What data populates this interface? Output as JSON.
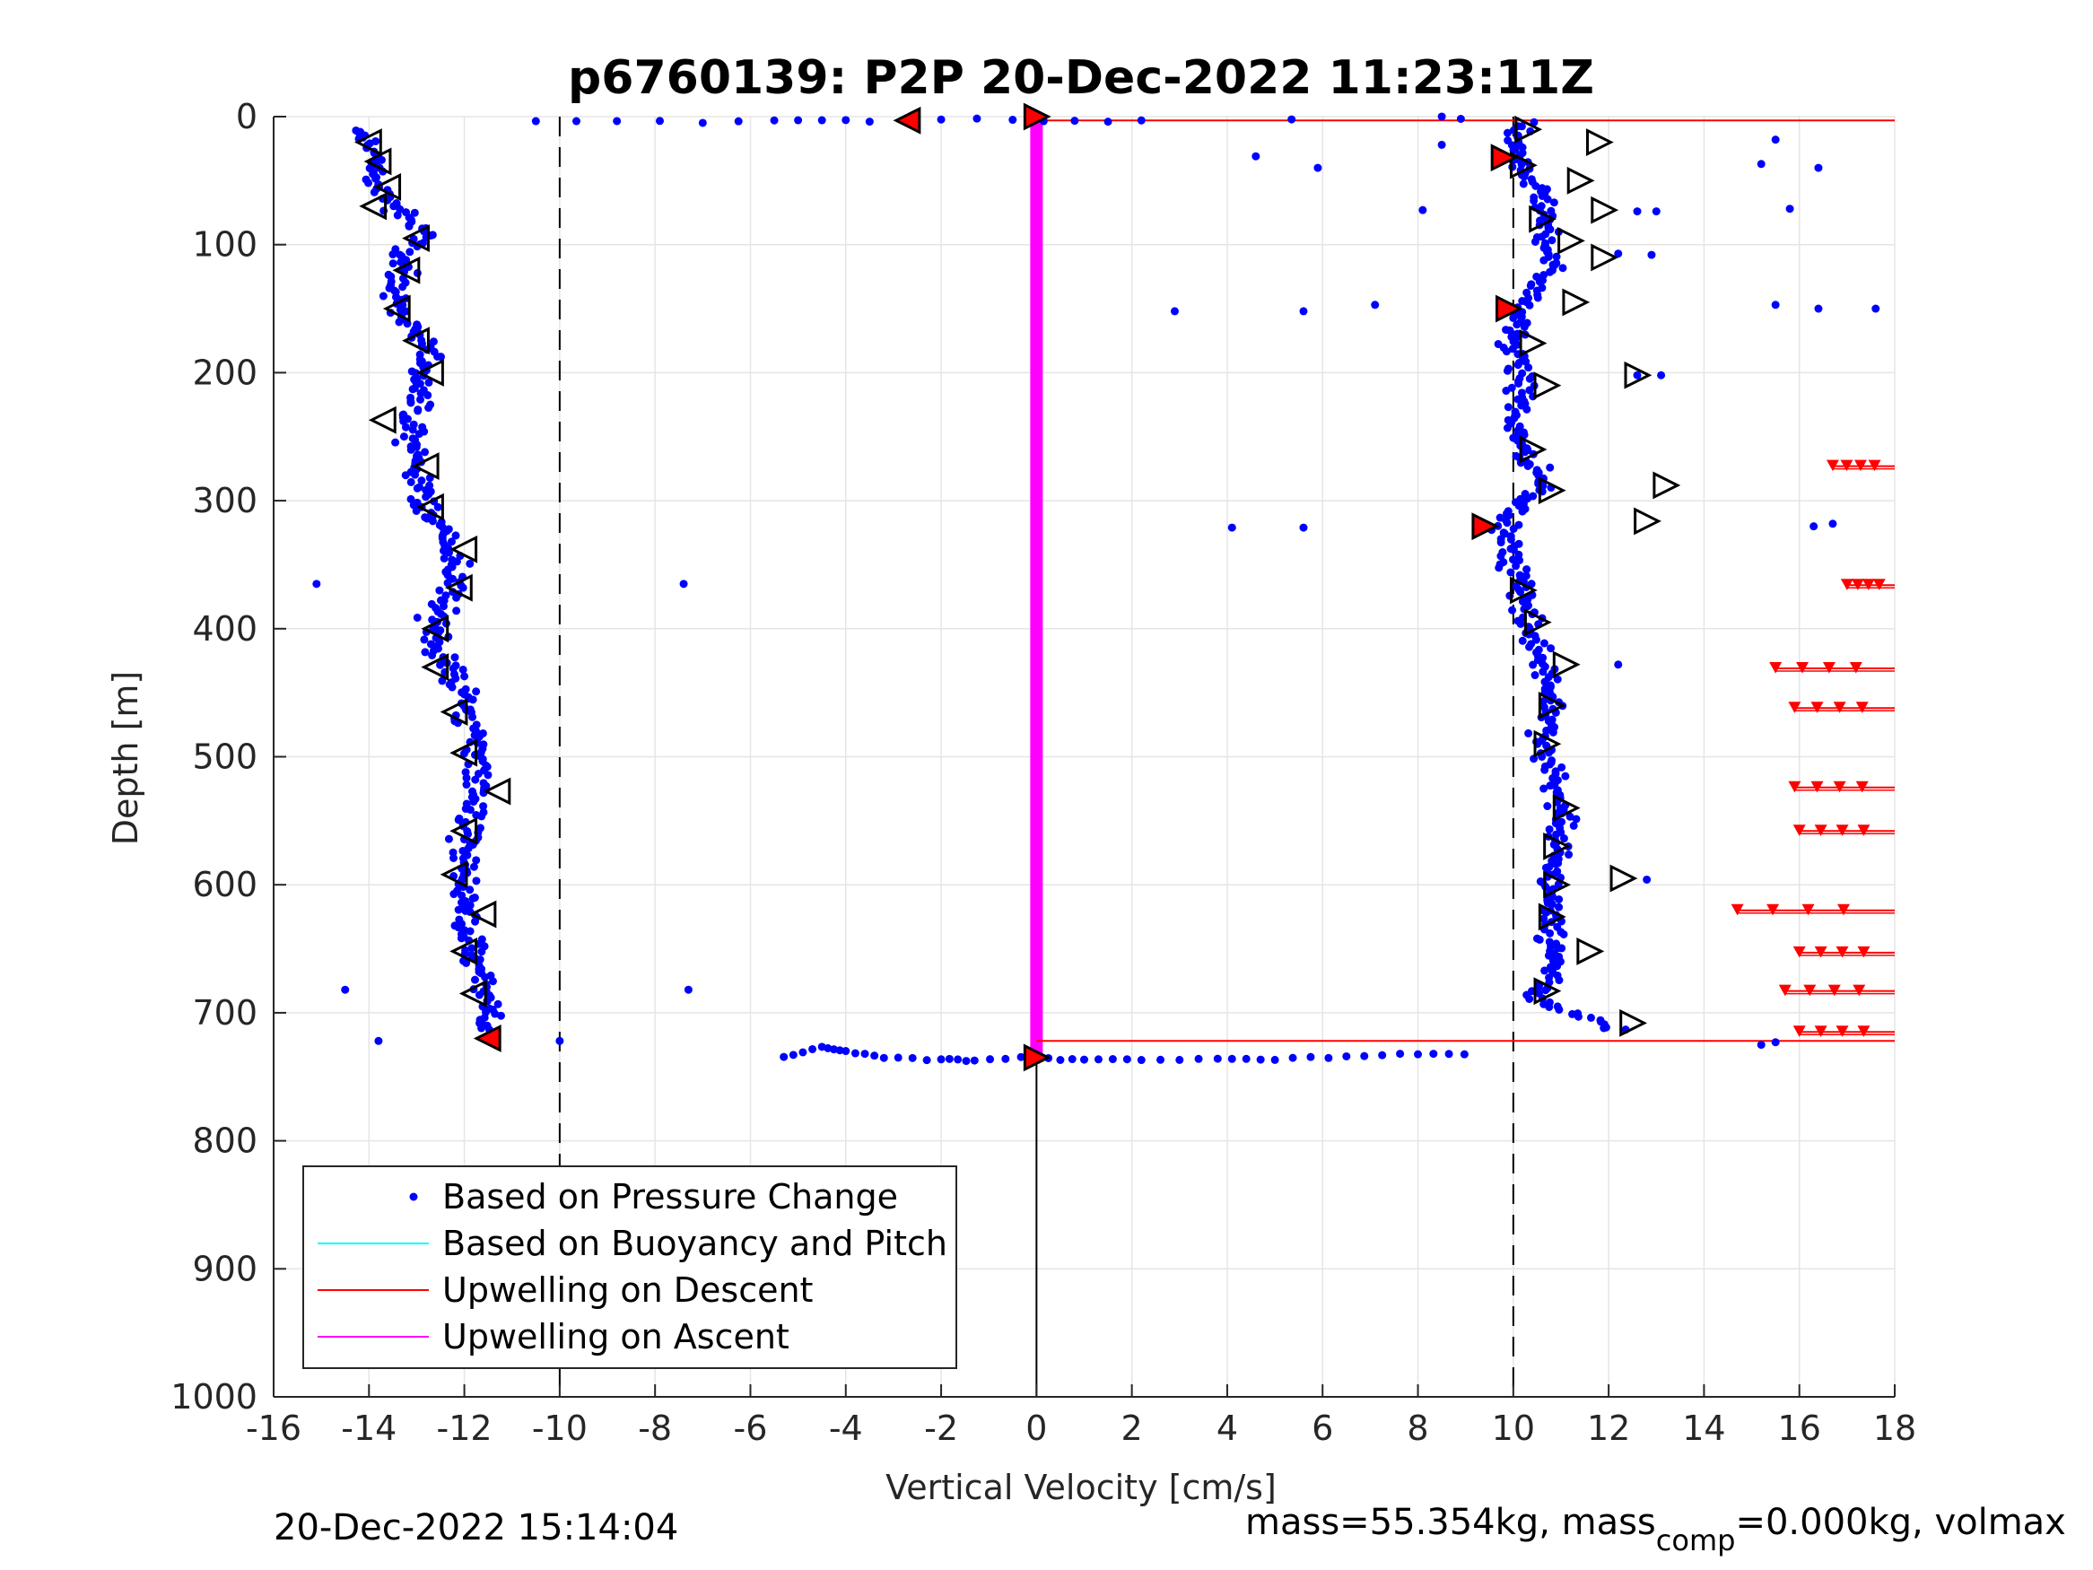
{
  "chart_data": {
    "type": "scatter",
    "title": "p6760139: P2P 20-Dec-2022 11:23:11Z",
    "xlabel": "Vertical Velocity [cm/s]",
    "ylabel": "Depth [m]",
    "xlim": [
      -16,
      18
    ],
    "ylim": [
      0,
      1000
    ],
    "y_reversed": true,
    "grid": true,
    "x_ticks": [
      "-16",
      "-14",
      "-12",
      "-10",
      "-8",
      "-6",
      "-4",
      "-2",
      "0",
      "2",
      "4",
      "6",
      "8",
      "10",
      "12",
      "14",
      "16",
      "18"
    ],
    "y_ticks": [
      "0",
      "100",
      "200",
      "300",
      "400",
      "500",
      "600",
      "700",
      "800",
      "900",
      "1000"
    ],
    "reference_lines_x": [
      -10,
      10
    ],
    "legend": {
      "placement": "bottom-left",
      "entries": [
        "Based on Pressure Change",
        "Based on Buoyancy and Pitch",
        "Upwelling on Descent",
        "Upwelling on Ascent"
      ]
    },
    "colors": {
      "pressure": "#0000ff",
      "buoyancy": "#00ffff",
      "descent_upwelling": "#ff0000",
      "ascent_upwelling": "#ff00ff",
      "grid": "#e5e5e5"
    },
    "series": [
      {
        "name": "Based on Pressure Change",
        "descent_profile": [
          [
            -14.3,
            10
          ],
          [
            -13.8,
            30
          ],
          [
            -13.9,
            50
          ],
          [
            -13.5,
            70
          ],
          [
            -12.9,
            90
          ],
          [
            -13.2,
            110
          ],
          [
            -13.5,
            130
          ],
          [
            -13.3,
            150
          ],
          [
            -13.0,
            170
          ],
          [
            -12.8,
            190
          ],
          [
            -12.9,
            210
          ],
          [
            -13.2,
            240
          ],
          [
            -13.0,
            270
          ],
          [
            -12.9,
            300
          ],
          [
            -12.3,
            330
          ],
          [
            -12.2,
            360
          ],
          [
            -12.6,
            390
          ],
          [
            -12.5,
            420
          ],
          [
            -12.0,
            450
          ],
          [
            -11.9,
            480
          ],
          [
            -11.6,
            510
          ],
          [
            -11.8,
            540
          ],
          [
            -12.0,
            570
          ],
          [
            -12.0,
            600
          ],
          [
            -12.0,
            630
          ],
          [
            -11.8,
            660
          ],
          [
            -11.5,
            690
          ],
          [
            -11.6,
            715
          ]
        ],
        "ascent_profile": [
          [
            10.1,
            5
          ],
          [
            10.0,
            30
          ],
          [
            10.6,
            60
          ],
          [
            10.7,
            90
          ],
          [
            10.8,
            120
          ],
          [
            10.2,
            150
          ],
          [
            10.0,
            180
          ],
          [
            10.2,
            210
          ],
          [
            10.0,
            240
          ],
          [
            10.4,
            270
          ],
          [
            10.6,
            290
          ],
          [
            9.8,
            320
          ],
          [
            9.9,
            345
          ],
          [
            10.2,
            370
          ],
          [
            10.3,
            400
          ],
          [
            10.7,
            430
          ],
          [
            10.8,
            460
          ],
          [
            10.6,
            490
          ],
          [
            10.9,
            520
          ],
          [
            11.0,
            545
          ],
          [
            10.9,
            570
          ],
          [
            10.8,
            600
          ],
          [
            10.8,
            630
          ],
          [
            10.9,
            660
          ],
          [
            10.5,
            690
          ],
          [
            12.4,
            715
          ]
        ],
        "surface_points": [
          [
            -10.5,
            3
          ],
          [
            -8.8,
            4
          ],
          [
            -7.0,
            4
          ],
          [
            -5.5,
            3
          ],
          [
            -4.5,
            3
          ],
          [
            -3.5,
            3
          ],
          [
            -2.0,
            2
          ],
          [
            -0.5,
            2
          ],
          [
            0.8,
            4
          ],
          [
            2.2,
            3
          ],
          [
            8.5,
            1
          ],
          [
            9.3,
            1
          ]
        ],
        "bottom_points": [
          [
            -5.3,
            735
          ],
          [
            -4.5,
            727
          ],
          [
            -4.0,
            730
          ],
          [
            -3.2,
            735
          ],
          [
            -2.0,
            737
          ],
          [
            -1.3,
            737
          ],
          [
            0.0,
            735
          ],
          [
            1.0,
            737
          ],
          [
            2.2,
            737
          ],
          [
            3.8,
            736
          ],
          [
            5.0,
            736
          ],
          [
            6.5,
            734
          ],
          [
            8.0,
            732
          ],
          [
            9.3,
            732
          ]
        ],
        "outliers": [
          [
            -15.1,
            365
          ],
          [
            -7.4,
            365
          ],
          [
            -14.5,
            682
          ],
          [
            -7.3,
            682
          ],
          [
            -13.8,
            722
          ],
          [
            -10.0,
            722
          ],
          [
            2.9,
            152
          ],
          [
            5.6,
            152
          ],
          [
            7.1,
            147
          ],
          [
            4.1,
            321
          ],
          [
            5.6,
            321
          ],
          [
            4.6,
            31
          ],
          [
            5.9,
            40
          ],
          [
            8.1,
            73
          ],
          [
            8.5,
            22
          ],
          [
            15.5,
            18
          ],
          [
            15.2,
            37
          ],
          [
            15.8,
            72
          ],
          [
            16.4,
            40
          ],
          [
            15.5,
            147
          ],
          [
            16.4,
            150
          ],
          [
            17.6,
            150
          ],
          [
            16.3,
            320
          ],
          [
            16.7,
            318
          ],
          [
            15.2,
            725
          ],
          [
            15.5,
            723
          ],
          [
            13.1,
            202
          ],
          [
            12.2,
            428
          ],
          [
            12.8,
            596
          ],
          [
            12.2,
            107
          ],
          [
            12.9,
            108
          ],
          [
            13.0,
            74
          ],
          [
            12.6,
            74
          ],
          [
            12.6,
            202
          ]
        ]
      },
      {
        "name": "Based on Buoyancy and Pitch",
        "points": []
      },
      {
        "name": "Upwelling on Descent",
        "baseline_x": 0,
        "descent_top_depth": 3,
        "descent_bottom_depth": 722,
        "bars": [
          {
            "depth": 273,
            "from": 16.7
          },
          {
            "depth": 366,
            "from": 17.0
          },
          {
            "depth": 431,
            "from": 15.5
          },
          {
            "depth": 462,
            "from": 15.9
          },
          {
            "depth": 524,
            "from": 15.9
          },
          {
            "depth": 558,
            "from": 16.0
          },
          {
            "depth": 620,
            "from": 14.7
          },
          {
            "depth": 653,
            "from": 16.0
          },
          {
            "depth": 683,
            "from": 15.7
          },
          {
            "depth": 715,
            "from": 16.0
          }
        ]
      },
      {
        "name": "Upwelling on Ascent",
        "x": 0,
        "depth_range": [
          0,
          735
        ]
      }
    ],
    "markers": {
      "ascent_open_triangles": [
        [
          -14.0,
          20
        ],
        [
          -13.8,
          35
        ],
        [
          -13.6,
          55
        ],
        [
          -13.9,
          70
        ],
        [
          -13.0,
          95
        ],
        [
          -13.2,
          120
        ],
        [
          -13.4,
          150
        ],
        [
          -13.0,
          175
        ],
        [
          -12.7,
          200
        ],
        [
          -13.7,
          237
        ],
        [
          -12.8,
          273
        ],
        [
          -12.7,
          305
        ],
        [
          -12.0,
          338
        ],
        [
          -12.1,
          368
        ],
        [
          -12.6,
          400
        ],
        [
          -12.6,
          430
        ],
        [
          -12.2,
          465
        ],
        [
          -12.0,
          497
        ],
        [
          -11.3,
          527
        ],
        [
          -12.0,
          558
        ],
        [
          -12.2,
          592
        ],
        [
          -11.6,
          623
        ],
        [
          -12.0,
          652
        ],
        [
          -11.8,
          685
        ]
      ],
      "descent_open_triangles": [
        [
          10.3,
          10
        ],
        [
          11.8,
          20
        ],
        [
          10.2,
          38
        ],
        [
          11.4,
          50
        ],
        [
          10.6,
          80
        ],
        [
          11.9,
          73
        ],
        [
          11.2,
          97
        ],
        [
          11.9,
          110
        ],
        [
          11.3,
          145
        ],
        [
          10.4,
          177
        ],
        [
          10.7,
          210
        ],
        [
          12.6,
          202
        ],
        [
          10.4,
          260
        ],
        [
          10.8,
          292
        ],
        [
          13.2,
          288
        ],
        [
          12.8,
          316
        ],
        [
          10.2,
          370
        ],
        [
          10.5,
          395
        ],
        [
          11.1,
          428
        ],
        [
          10.8,
          460
        ],
        [
          10.7,
          490
        ],
        [
          11.1,
          540
        ],
        [
          10.9,
          570
        ],
        [
          10.9,
          600
        ],
        [
          12.3,
          595
        ],
        [
          10.8,
          625
        ],
        [
          11.6,
          652
        ],
        [
          10.7,
          683
        ],
        [
          12.5,
          708
        ]
      ],
      "red_triangles": [
        [
          -2.7,
          3
        ],
        [
          0.0,
          0
        ],
        [
          9.8,
          32
        ],
        [
          9.9,
          150
        ],
        [
          9.4,
          320
        ],
        [
          0.0,
          735
        ],
        [
          -11.5,
          720
        ]
      ]
    }
  },
  "footer": {
    "timestamp": "20-Dec-2022 15:14:04",
    "mass_prefix": "mass=55.354kg, mass",
    "mass_sub": "comp",
    "mass_suffix": "=0.000kg, volmax"
  }
}
